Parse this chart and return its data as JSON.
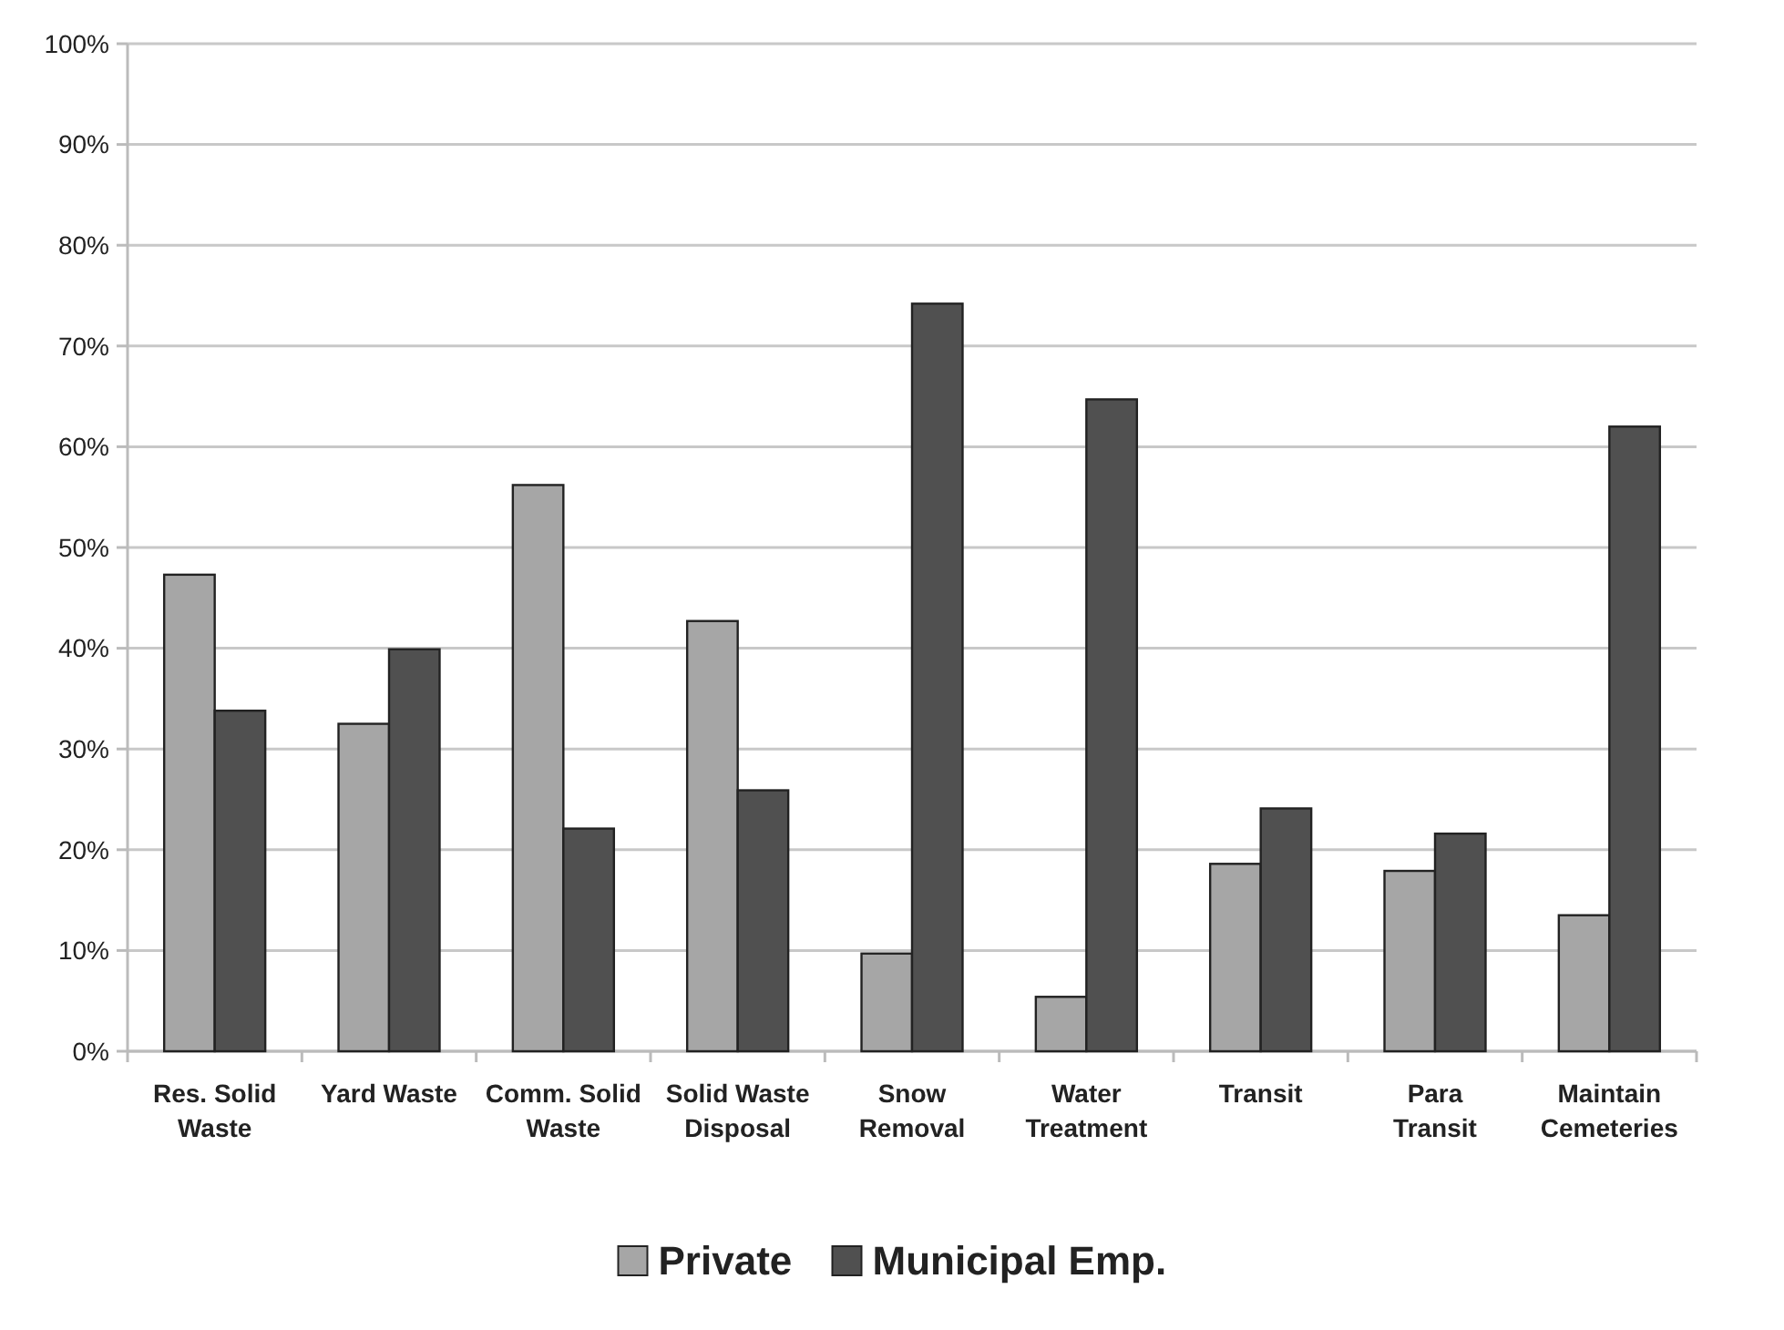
{
  "chart_data": {
    "type": "bar",
    "categories": [
      "Res. Solid Waste",
      "Yard Waste",
      "Comm. Solid Waste",
      "Solid Waste Disposal",
      "Snow Removal",
      "Water Treatment",
      "Transit",
      "Para Transit",
      "Maintain Cemeteries"
    ],
    "series": [
      {
        "name": "Private",
        "color": "#a6a6a6",
        "values": [
          47.3,
          32.5,
          56.2,
          42.7,
          9.7,
          5.4,
          18.6,
          17.9,
          13.5
        ]
      },
      {
        "name": "Municipal Emp.",
        "color": "#505050",
        "values": [
          33.8,
          39.9,
          22.1,
          25.9,
          74.2,
          64.7,
          24.1,
          21.6,
          62.0
        ]
      }
    ],
    "ylim": [
      0,
      100
    ],
    "yticks": [
      {
        "value": 0,
        "label": "0%"
      },
      {
        "value": 10,
        "label": "10%"
      },
      {
        "value": 20,
        "label": "20%"
      },
      {
        "value": 30,
        "label": "30%"
      },
      {
        "value": 40,
        "label": "40%"
      },
      {
        "value": 50,
        "label": "50%"
      },
      {
        "value": 60,
        "label": "60%"
      },
      {
        "value": 70,
        "label": "70%"
      },
      {
        "value": 80,
        "label": "80%"
      },
      {
        "value": 90,
        "label": "90%"
      },
      {
        "value": 100,
        "label": "100%"
      }
    ],
    "grid": "y",
    "legend": "bottom"
  }
}
